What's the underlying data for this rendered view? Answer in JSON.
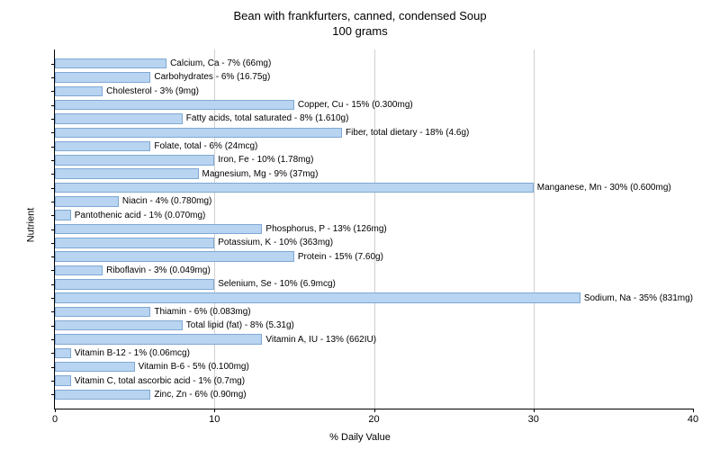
{
  "chart": {
    "type": "bar-horizontal",
    "title_line1": "Bean with frankfurters, canned, condensed Soup",
    "title_line2": "100 grams",
    "title_fontsize": 13,
    "x_axis_label": "% Daily Value",
    "y_axis_label": "Nutrient",
    "label_fontsize": 11,
    "bar_label_fontsize": 10,
    "xlim_min": 0,
    "xlim_max": 40,
    "x_ticks": [
      0,
      10,
      20,
      30,
      40
    ],
    "bar_color": "#b8d4f0",
    "bar_border_color": "#7fa8d4",
    "grid_color": "#d0d0d0",
    "background_color": "#ffffff",
    "axis_color": "#000000",
    "nutrients": [
      {
        "label": "Calcium, Ca - 7% (66mg)",
        "value": 7
      },
      {
        "label": "Carbohydrates - 6% (16.75g)",
        "value": 6
      },
      {
        "label": "Cholesterol - 3% (9mg)",
        "value": 3
      },
      {
        "label": "Copper, Cu - 15% (0.300mg)",
        "value": 15
      },
      {
        "label": "Fatty acids, total saturated - 8% (1.610g)",
        "value": 8
      },
      {
        "label": "Fiber, total dietary - 18% (4.6g)",
        "value": 18
      },
      {
        "label": "Folate, total - 6% (24mcg)",
        "value": 6
      },
      {
        "label": "Iron, Fe - 10% (1.78mg)",
        "value": 10
      },
      {
        "label": "Magnesium, Mg - 9% (37mg)",
        "value": 9
      },
      {
        "label": "Manganese, Mn - 30% (0.600mg)",
        "value": 30
      },
      {
        "label": "Niacin - 4% (0.780mg)",
        "value": 4
      },
      {
        "label": "Pantothenic acid - 1% (0.070mg)",
        "value": 1
      },
      {
        "label": "Phosphorus, P - 13% (126mg)",
        "value": 13
      },
      {
        "label": "Potassium, K - 10% (363mg)",
        "value": 10
      },
      {
        "label": "Protein - 15% (7.60g)",
        "value": 15
      },
      {
        "label": "Riboflavin - 3% (0.049mg)",
        "value": 3
      },
      {
        "label": "Selenium, Se - 10% (6.9mcg)",
        "value": 10
      },
      {
        "label": "Sodium, Na - 35% (831mg)",
        "value": 35
      },
      {
        "label": "Thiamin - 6% (0.083mg)",
        "value": 6
      },
      {
        "label": "Total lipid (fat) - 8% (5.31g)",
        "value": 8
      },
      {
        "label": "Vitamin A, IU - 13% (662IU)",
        "value": 13
      },
      {
        "label": "Vitamin B-12 - 1% (0.06mcg)",
        "value": 1
      },
      {
        "label": "Vitamin B-6 - 5% (0.100mg)",
        "value": 5
      },
      {
        "label": "Vitamin C, total ascorbic acid - 1% (0.7mg)",
        "value": 1
      },
      {
        "label": "Zinc, Zn - 6% (0.90mg)",
        "value": 6
      }
    ]
  }
}
